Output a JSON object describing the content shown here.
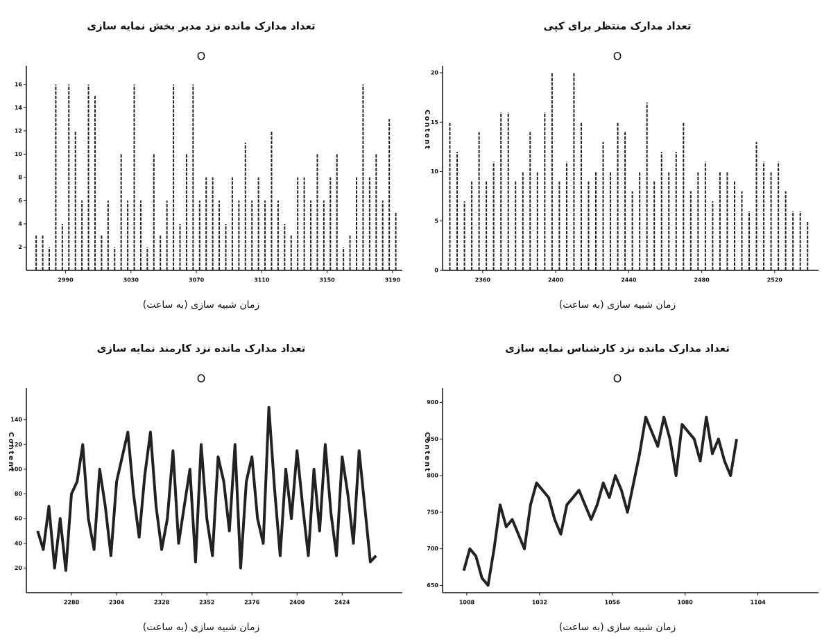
{
  "chart_data": [
    {
      "type": "stem",
      "title": "تعداد مدارک مانده نزد مدیر بخش نمایه سازی",
      "subtitle": "O",
      "x_label": "زمان شبیه سازی (به ساعت)",
      "color": "#222",
      "x": [
        2972,
        2976,
        2980,
        2984,
        2988,
        2992,
        2996,
        3000,
        3004,
        3008,
        3012,
        3016,
        3020,
        3024,
        3028,
        3032,
        3036,
        3040,
        3044,
        3048,
        3052,
        3056,
        3060,
        3064,
        3068,
        3072,
        3076,
        3080,
        3084,
        3088,
        3092,
        3096,
        3100,
        3104,
        3108,
        3112,
        3116,
        3120,
        3124,
        3128,
        3132,
        3136,
        3140,
        3144,
        3148,
        3152,
        3156,
        3160,
        3164,
        3168,
        3172,
        3176,
        3180,
        3184,
        3188,
        3192
      ],
      "values": [
        3,
        3,
        2,
        16,
        4,
        16,
        12,
        6,
        16,
        15,
        3,
        6,
        2,
        10,
        6,
        16,
        6,
        2,
        10,
        3,
        6,
        16,
        4,
        10,
        16,
        6,
        8,
        8,
        6,
        4,
        8,
        6,
        11,
        6,
        8,
        6,
        12,
        6,
        4,
        3,
        8,
        8,
        6,
        10,
        6,
        8,
        10,
        2,
        3,
        8,
        16,
        8,
        10,
        6,
        13,
        5
      ],
      "xlim": [
        2966,
        3196
      ],
      "xticks": [
        2990,
        3030,
        3070,
        3110,
        3150,
        3190
      ],
      "ylim": [
        0,
        17
      ],
      "yticks": [
        2,
        4,
        6,
        8,
        10,
        12,
        14,
        16
      ]
    },
    {
      "type": "stem",
      "title": "تعداد مدارک منتظر برای کپی",
      "subtitle": "O",
      "x_label": "زمان شبیه سازی (به ساعت)",
      "y_label": "Content",
      "color": "#222",
      "x": [
        2342,
        2346,
        2350,
        2354,
        2358,
        2362,
        2366,
        2370,
        2374,
        2378,
        2382,
        2386,
        2390,
        2394,
        2398,
        2402,
        2406,
        2410,
        2414,
        2418,
        2422,
        2426,
        2430,
        2434,
        2438,
        2442,
        2446,
        2450,
        2454,
        2458,
        2462,
        2466,
        2470,
        2474,
        2478,
        2482,
        2486,
        2490,
        2494,
        2498,
        2502,
        2506,
        2510,
        2514,
        2518,
        2522,
        2526,
        2530,
        2534,
        2538
      ],
      "values": [
        15,
        12,
        7,
        9,
        14,
        9,
        11,
        16,
        16,
        9,
        10,
        14,
        10,
        16,
        20,
        9,
        11,
        20,
        15,
        9,
        10,
        13,
        10,
        15,
        14,
        8,
        10,
        17,
        9,
        12,
        10,
        12,
        15,
        8,
        10,
        11,
        7,
        10,
        10,
        9,
        8,
        6,
        13,
        11,
        10,
        11,
        8,
        6,
        6,
        5
      ],
      "xlim": [
        2338,
        2544
      ],
      "xticks": [
        2360,
        2400,
        2440,
        2480,
        2520
      ],
      "ylim": [
        0,
        20
      ],
      "yticks": [
        0,
        5,
        10,
        15,
        20
      ]
    },
    {
      "type": "line",
      "title": "تعداد مدارک مانده نزد کارمند نمایه سازی",
      "subtitle": "O",
      "x_label": "زمان شبیه سازی (به ساعت)",
      "y_label": "Content",
      "color": "#222",
      "x": [
        2262,
        2265,
        2268,
        2271,
        2274,
        2277,
        2280,
        2283,
        2286,
        2289,
        2292,
        2295,
        2298,
        2301,
        2304,
        2307,
        2310,
        2313,
        2316,
        2319,
        2322,
        2325,
        2328,
        2331,
        2334,
        2337,
        2340,
        2343,
        2346,
        2349,
        2352,
        2355,
        2358,
        2361,
        2364,
        2367,
        2370,
        2373,
        2376,
        2379,
        2382,
        2385,
        2388,
        2391,
        2394,
        2397,
        2400,
        2403,
        2406,
        2409,
        2412,
        2415,
        2418,
        2421,
        2424,
        2427,
        2430,
        2433,
        2436,
        2439,
        2442
      ],
      "values": [
        50,
        35,
        70,
        20,
        60,
        18,
        80,
        90,
        120,
        60,
        35,
        100,
        70,
        30,
        90,
        110,
        130,
        80,
        45,
        95,
        130,
        70,
        35,
        60,
        115,
        40,
        70,
        100,
        25,
        120,
        60,
        30,
        110,
        90,
        50,
        120,
        20,
        90,
        110,
        60,
        40,
        150,
        85,
        30,
        100,
        60,
        115,
        70,
        30,
        100,
        50,
        120,
        65,
        30,
        110,
        80,
        40,
        115,
        70,
        25,
        30
      ],
      "xlim": [
        2256,
        2456
      ],
      "xticks": [
        2280,
        2304,
        2328,
        2352,
        2376,
        2400,
        2424
      ],
      "ylim": [
        0,
        160
      ],
      "yticks": [
        20,
        40,
        60,
        80,
        100,
        120,
        140
      ]
    },
    {
      "type": "line",
      "title": "تعداد مدارک مانده نزد کارشناس نمایه سازی",
      "subtitle": "O",
      "x_label": "زمان شبیه سازی (به ساعت)",
      "y_label": "Content",
      "color": "#222",
      "x": [
        1007,
        1009,
        1011,
        1013,
        1015,
        1017,
        1019,
        1021,
        1023,
        1025,
        1027,
        1029,
        1031,
        1033,
        1035,
        1037,
        1039,
        1041,
        1043,
        1045,
        1047,
        1049,
        1051,
        1053,
        1055,
        1057,
        1059,
        1061,
        1063,
        1065,
        1067,
        1069,
        1071,
        1073,
        1075,
        1077,
        1079,
        1081,
        1083,
        1085,
        1087,
        1089,
        1091,
        1093,
        1095,
        1097
      ],
      "values": [
        670,
        700,
        690,
        660,
        650,
        700,
        760,
        730,
        740,
        720,
        700,
        760,
        790,
        780,
        770,
        740,
        720,
        760,
        770,
        780,
        760,
        740,
        760,
        790,
        770,
        800,
        780,
        750,
        790,
        830,
        880,
        860,
        840,
        880,
        850,
        800,
        870,
        860,
        850,
        820,
        880,
        830,
        850,
        820,
        800,
        850
      ],
      "xlim": [
        1000,
        1124
      ],
      "xticks": [
        1008,
        1032,
        1056,
        1080,
        1104
      ],
      "ylim": [
        640,
        910
      ],
      "yticks": [
        650,
        700,
        750,
        800,
        850,
        900
      ]
    }
  ]
}
